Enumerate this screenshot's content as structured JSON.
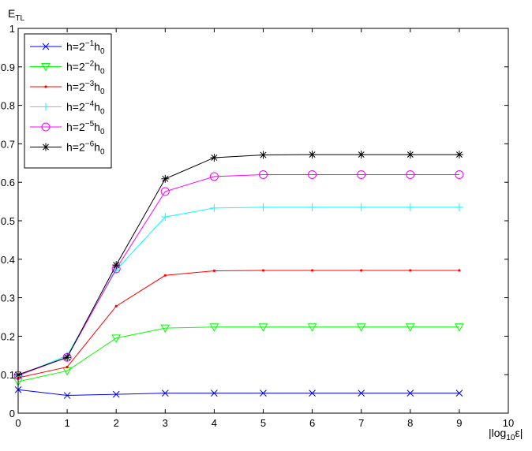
{
  "chart_data": {
    "type": "line",
    "title": "",
    "xlabel": "|log10 ε|",
    "ylabel": "E_TL",
    "xlabel_parts": {
      "pre": "|log",
      "sub": "10",
      "post": "ε|"
    },
    "ylabel_parts": {
      "main": "E",
      "sub": "TL"
    },
    "xlim": [
      0,
      10
    ],
    "ylim": [
      0,
      1
    ],
    "xticks": [
      "0",
      "1",
      "2",
      "3",
      "4",
      "5",
      "6",
      "7",
      "8",
      "9",
      "10"
    ],
    "yticks": [
      "0",
      "0.1",
      "0.2",
      "0.3",
      "0.4",
      "0.5",
      "0.6",
      "0.7",
      "0.8",
      "0.9",
      "1"
    ],
    "grid": false,
    "legend_position": "top-left",
    "x": [
      0,
      1,
      2,
      3,
      4,
      5,
      6,
      7,
      8,
      9
    ],
    "series": [
      {
        "name": "h=2^{-1}h_0",
        "legend": {
          "base": "h=2",
          "sup": "−1",
          "mid": "h",
          "sub": "0"
        },
        "color": "#0000ff",
        "marker": "x",
        "values": [
          0.061,
          0.046,
          0.049,
          0.052,
          0.052,
          0.052,
          0.052,
          0.052,
          0.052,
          0.052
        ]
      },
      {
        "name": "h=2^{-2}h_0",
        "legend": {
          "base": "h=2",
          "sup": "−2",
          "mid": "h",
          "sub": "0"
        },
        "color": "#00ff00",
        "marker": "triangle-down",
        "values": [
          0.082,
          0.11,
          0.195,
          0.221,
          0.224,
          0.224,
          0.224,
          0.224,
          0.224,
          0.224
        ]
      },
      {
        "name": "h=2^{-3}h_0",
        "legend": {
          "base": "h=2",
          "sup": "−3",
          "mid": "h",
          "sub": "0"
        },
        "color": "#ff0000",
        "marker": "dot",
        "values": [
          0.092,
          0.12,
          0.278,
          0.358,
          0.37,
          0.371,
          0.371,
          0.371,
          0.371,
          0.371
        ]
      },
      {
        "name": "h=2^{-4}h_0",
        "legend": {
          "base": "h=2",
          "sup": "−4",
          "mid": "h",
          "sub": "0"
        },
        "color": "#00ffff",
        "marker": "plus",
        "values": [
          0.097,
          0.15,
          0.372,
          0.51,
          0.533,
          0.535,
          0.535,
          0.535,
          0.535,
          0.535
        ]
      },
      {
        "name": "h=2^{-5}h_0",
        "legend": {
          "base": "h=2",
          "sup": "−5",
          "mid": "h",
          "sub": "0"
        },
        "color": "#ff00ff",
        "marker": "circle",
        "values": [
          0.098,
          0.145,
          0.375,
          0.576,
          0.615,
          0.62,
          0.62,
          0.62,
          0.62,
          0.62
        ]
      },
      {
        "name": "h=2^{-6}h_0",
        "legend": {
          "base": "h=2",
          "sup": "−6",
          "mid": "h",
          "sub": "0"
        },
        "color": "#000000",
        "marker": "asterisk",
        "values": [
          0.1,
          0.145,
          0.385,
          0.609,
          0.664,
          0.671,
          0.672,
          0.672,
          0.672,
          0.672
        ]
      }
    ]
  }
}
